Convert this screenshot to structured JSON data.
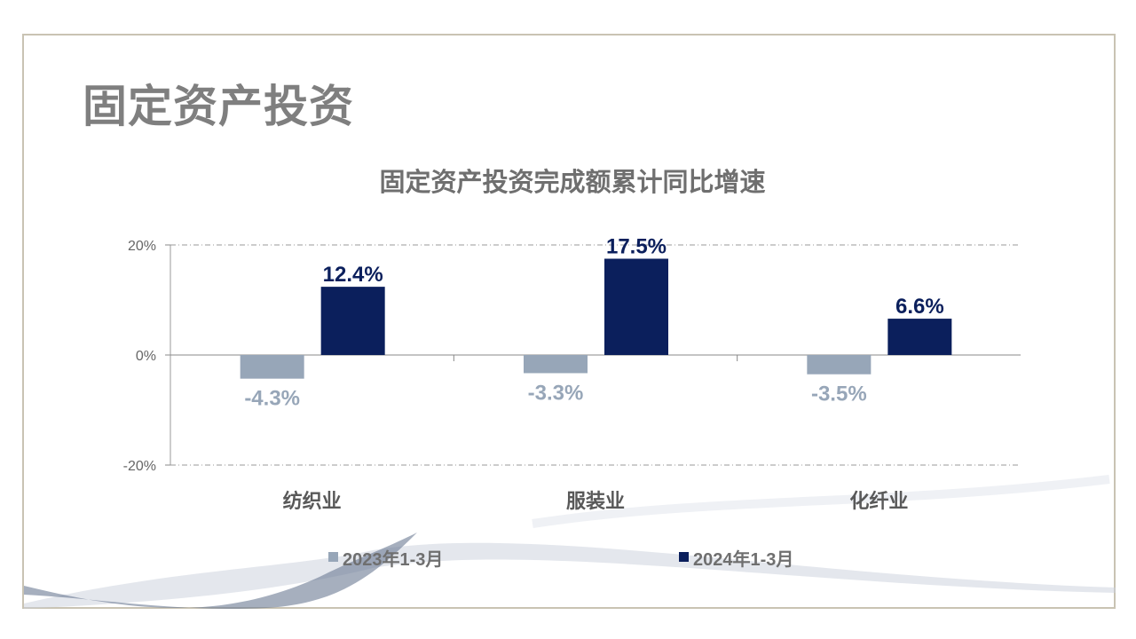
{
  "page_title": "固定资产投资",
  "chart_data": {
    "type": "bar",
    "title": "固定资产投资完成额累计同比增速",
    "categories": [
      "纺织业",
      "服装业",
      "化纤业"
    ],
    "series": [
      {
        "name": "2023年1-3月",
        "values": [
          -4.3,
          -3.3,
          -3.5
        ],
        "labels": [
          "-4.3%",
          "-3.3%",
          "-3.5%"
        ],
        "color": "#97a6b8"
      },
      {
        "name": "2024年1-3月",
        "values": [
          12.4,
          17.5,
          6.6
        ],
        "labels": [
          "12.4%",
          "17.5%",
          "6.6%"
        ],
        "color": "#0b1f5c"
      }
    ],
    "yticks": [
      20,
      0,
      -20
    ],
    "ytick_labels": [
      "20%",
      "0%",
      "-20%"
    ],
    "ylim": [
      -20,
      20
    ],
    "grid": true,
    "legend": "bottom",
    "xlabel": "",
    "ylabel": ""
  }
}
